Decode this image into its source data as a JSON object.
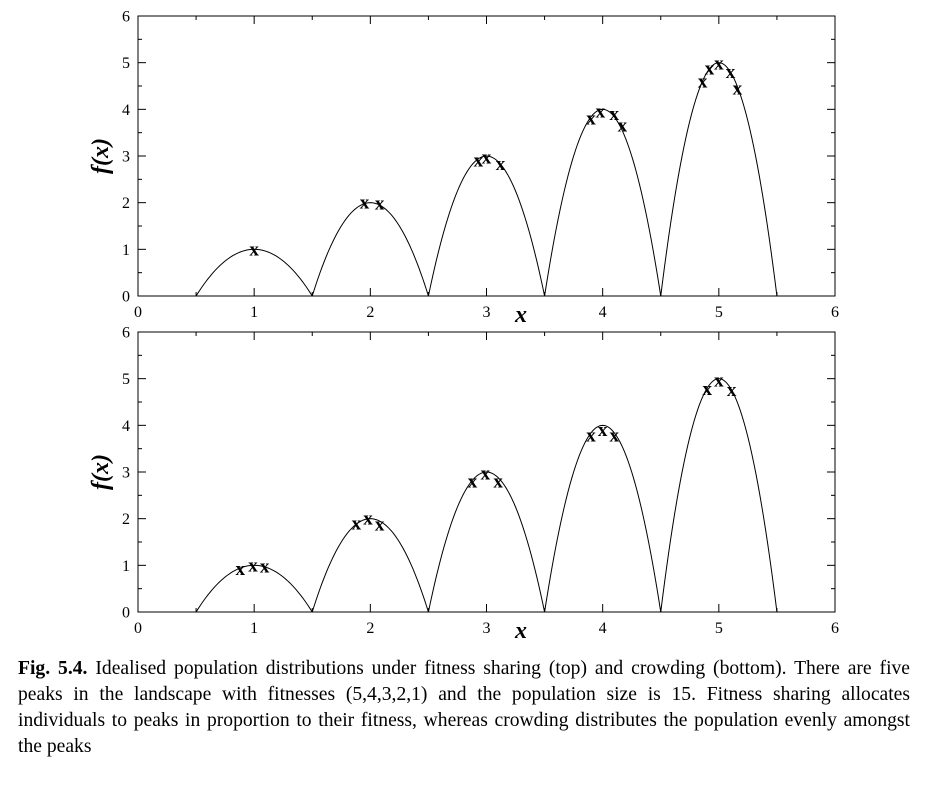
{
  "chart_data": [
    {
      "type": "scatter",
      "panel": "top",
      "title": "",
      "xlabel": "x",
      "ylabel": "f(x)",
      "xlim": [
        0,
        6
      ],
      "ylim": [
        0,
        6
      ],
      "xticks": [
        "0",
        "1",
        "2",
        "3",
        "4",
        "5",
        "6"
      ],
      "yticks": [
        "0",
        "1",
        "2",
        "3",
        "4",
        "5",
        "6"
      ],
      "grid": false,
      "landscape": {
        "peaks": [
          {
            "center": 1,
            "height": 1,
            "from": 0.5,
            "to": 1.5
          },
          {
            "center": 2,
            "height": 2,
            "from": 1.5,
            "to": 2.5
          },
          {
            "center": 3,
            "height": 3,
            "from": 2.5,
            "to": 3.5
          },
          {
            "center": 4,
            "height": 4,
            "from": 3.5,
            "to": 4.5
          },
          {
            "center": 5,
            "height": 5,
            "from": 4.5,
            "to": 5.5
          }
        ]
      },
      "marker": "x",
      "points": [
        {
          "x": 1.0,
          "y": 1.0
        },
        {
          "x": 1.95,
          "y": 2.0
        },
        {
          "x": 2.08,
          "y": 1.98
        },
        {
          "x": 2.93,
          "y": 2.9
        },
        {
          "x": 3.0,
          "y": 2.97
        },
        {
          "x": 3.12,
          "y": 2.83
        },
        {
          "x": 3.9,
          "y": 3.8
        },
        {
          "x": 3.98,
          "y": 3.95
        },
        {
          "x": 4.1,
          "y": 3.9
        },
        {
          "x": 4.17,
          "y": 3.65
        },
        {
          "x": 4.86,
          "y": 4.6
        },
        {
          "x": 4.92,
          "y": 4.88
        },
        {
          "x": 5.0,
          "y": 4.98
        },
        {
          "x": 5.1,
          "y": 4.8
        },
        {
          "x": 5.16,
          "y": 4.45
        }
      ]
    },
    {
      "type": "scatter",
      "panel": "bottom",
      "title": "",
      "xlabel": "x",
      "ylabel": "f(x)",
      "xlim": [
        0,
        6
      ],
      "ylim": [
        0,
        6
      ],
      "xticks": [
        "0",
        "1",
        "2",
        "3",
        "4",
        "5",
        "6"
      ],
      "yticks": [
        "0",
        "1",
        "2",
        "3",
        "4",
        "5",
        "6"
      ],
      "grid": false,
      "landscape": {
        "peaks": [
          {
            "center": 1,
            "height": 1,
            "from": 0.5,
            "to": 1.5
          },
          {
            "center": 2,
            "height": 2,
            "from": 1.5,
            "to": 2.5
          },
          {
            "center": 3,
            "height": 3,
            "from": 2.5,
            "to": 3.5
          },
          {
            "center": 4,
            "height": 4,
            "from": 3.5,
            "to": 4.5
          },
          {
            "center": 5,
            "height": 5,
            "from": 4.5,
            "to": 5.5
          }
        ]
      },
      "marker": "x",
      "points": [
        {
          "x": 0.88,
          "y": 0.92
        },
        {
          "x": 0.99,
          "y": 1.0
        },
        {
          "x": 1.09,
          "y": 0.97
        },
        {
          "x": 1.88,
          "y": 1.9
        },
        {
          "x": 1.98,
          "y": 2.0
        },
        {
          "x": 2.08,
          "y": 1.88
        },
        {
          "x": 2.88,
          "y": 2.8
        },
        {
          "x": 2.99,
          "y": 2.97
        },
        {
          "x": 3.1,
          "y": 2.8
        },
        {
          "x": 3.9,
          "y": 3.78
        },
        {
          "x": 4.0,
          "y": 3.9
        },
        {
          "x": 4.1,
          "y": 3.78
        },
        {
          "x": 4.9,
          "y": 4.78
        },
        {
          "x": 5.0,
          "y": 4.96
        },
        {
          "x": 5.11,
          "y": 4.76
        }
      ]
    }
  ],
  "caption": {
    "label": "Fig. 5.4.",
    "text": "Idealised population distributions under fitness sharing (top) and crowding (bottom). There are five peaks in the landscape with fitnesses (5,4,3,2,1) and the population size is 15. Fitness sharing allocates individuals to peaks in proportion to their fitness, whereas crowding distributes the population evenly amongst the peaks"
  }
}
